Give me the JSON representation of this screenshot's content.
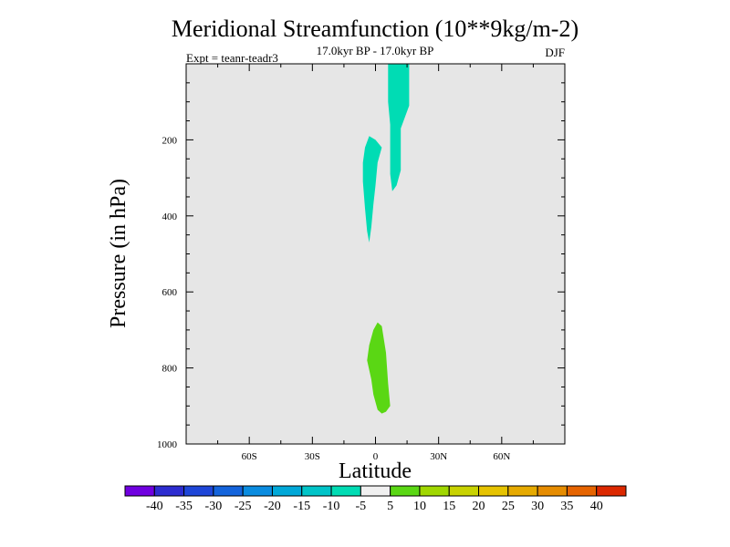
{
  "chart_data": {
    "type": "contour",
    "title": "Meridional Streamfunction (10**9kg/m-2)",
    "subtitle": "17.0kyr BP - 17.0kyr BP",
    "left_label": "Expt = teanr-teadr3",
    "right_label": "DJF",
    "xlabel": "Latitude",
    "ylabel": "Pressure (in hPa)",
    "xlim": [
      -90,
      90
    ],
    "ylim": [
      0,
      1000
    ],
    "y_inverted": true,
    "x_ticks": [
      {
        "value": -60,
        "label": "60S"
      },
      {
        "value": -30,
        "label": "30S"
      },
      {
        "value": 0,
        "label": "0"
      },
      {
        "value": 30,
        "label": "30N"
      },
      {
        "value": 60,
        "label": "60N"
      }
    ],
    "y_ticks": [
      {
        "value": 200,
        "label": "200"
      },
      {
        "value": 400,
        "label": "400"
      },
      {
        "value": 600,
        "label": "600"
      },
      {
        "value": 800,
        "label": "800"
      },
      {
        "value": 1000,
        "label": "1000"
      }
    ],
    "background_color": "#e6e6e6",
    "regions": [
      {
        "name": "negative-cell-upper",
        "level_range": [
          -10,
          -5
        ],
        "color": "#00dcb4",
        "points": [
          [
            6,
            0
          ],
          [
            16,
            0
          ],
          [
            16,
            110
          ],
          [
            12,
            170
          ],
          [
            12,
            280
          ],
          [
            10,
            320
          ],
          [
            8,
            335
          ],
          [
            7,
            290
          ],
          [
            7,
            160
          ],
          [
            6,
            100
          ]
        ]
      },
      {
        "name": "negative-cell-mid",
        "level_range": [
          -10,
          -5
        ],
        "color": "#00dcb4",
        "points": [
          [
            -3,
            190
          ],
          [
            0,
            200
          ],
          [
            3,
            220
          ],
          [
            1,
            260
          ],
          [
            0,
            320
          ],
          [
            -1,
            370
          ],
          [
            -2,
            430
          ],
          [
            -3,
            470
          ],
          [
            -4,
            440
          ],
          [
            -5,
            380
          ],
          [
            -6,
            310
          ],
          [
            -6,
            260
          ],
          [
            -5,
            220
          ]
        ]
      },
      {
        "name": "positive-cell-lower",
        "level_range": [
          5,
          10
        ],
        "color": "#5ad714",
        "points": [
          [
            1,
            680
          ],
          [
            3,
            690
          ],
          [
            5,
            760
          ],
          [
            6,
            840
          ],
          [
            7,
            900
          ],
          [
            5,
            915
          ],
          [
            3,
            920
          ],
          [
            1,
            910
          ],
          [
            -1,
            870
          ],
          [
            -2,
            830
          ],
          [
            -4,
            780
          ],
          [
            -3,
            740
          ],
          [
            -1,
            700
          ]
        ]
      }
    ],
    "colorbar": {
      "levels": [
        "-40",
        "-35",
        "-30",
        "-25",
        "-20",
        "-15",
        "-10",
        "-5",
        "5",
        "10",
        "15",
        "20",
        "25",
        "30",
        "35",
        "40"
      ],
      "colors": [
        "#7000e0",
        "#2d2cd0",
        "#1e46d8",
        "#1464dc",
        "#0a8ce0",
        "#00a8d8",
        "#00c4c8",
        "#00dcb4",
        "#f0f0f0",
        "#5ad714",
        "#a0d700",
        "#c8d200",
        "#e6c300",
        "#e6aa00",
        "#e68c00",
        "#e66400",
        "#dc2800"
      ]
    }
  }
}
